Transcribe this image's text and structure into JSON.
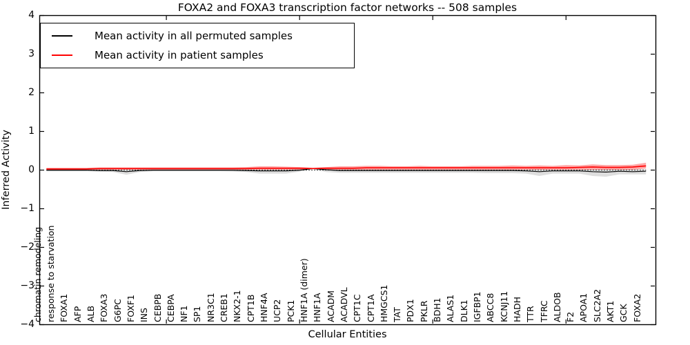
{
  "chart_data": {
    "type": "line",
    "title": "FOXA2 and FOXA3 transcription factor networks -- 508 samples",
    "xlabel": "Cellular Entities",
    "ylabel": "Inferred Activity",
    "ylim": [
      -4,
      4
    ],
    "yticks": [
      4,
      3,
      2,
      1,
      0,
      -1,
      -2,
      -3,
      -4
    ],
    "xticks_at": [
      10,
      20,
      30,
      40
    ],
    "grid": false,
    "legend_position": "upper left",
    "zero_line_style": "dotted",
    "categories": [
      "chromatin remodeling",
      "response to starvation",
      "FOXA1",
      "AFP",
      "ALB",
      "FOXA3",
      "G6PC",
      "FOXF1",
      "INS",
      "CEBPB",
      "CEBPA",
      "NF1",
      "SP1",
      "NR3C1",
      "CREB1",
      "NKX2-1",
      "CPT1B",
      "HNF4A",
      "UCP2",
      "PCK1",
      "HNF1A (dimer)",
      "HNF1A",
      "ACADM",
      "ACADVL",
      "CPT1C",
      "CPT1A",
      "HMGCS1",
      "TAT",
      "PDX1",
      "PKLR",
      "BDH1",
      "ALAS1",
      "DLK1",
      "IGFBP1",
      "ABCC8",
      "KCNJ11",
      "HADH",
      "TTR",
      "TFRC",
      "ALDOB",
      "F2",
      "APOA1",
      "SLC2A2",
      "AKT1",
      "GCK",
      "FOXA2"
    ],
    "series": [
      {
        "name": "Mean activity in all permuted samples",
        "color": "#000000",
        "band_color": "rgba(0,0,0,0.13)",
        "values": [
          -0.01,
          -0.01,
          -0.01,
          -0.01,
          -0.02,
          -0.02,
          -0.05,
          -0.02,
          -0.01,
          -0.01,
          -0.01,
          -0.01,
          -0.01,
          -0.01,
          -0.01,
          -0.02,
          -0.03,
          -0.03,
          -0.03,
          -0.01,
          0.03,
          0.0,
          -0.02,
          -0.02,
          -0.02,
          -0.02,
          -0.02,
          -0.02,
          -0.02,
          -0.02,
          -0.02,
          -0.02,
          -0.02,
          -0.02,
          -0.02,
          -0.02,
          -0.03,
          -0.05,
          -0.03,
          -0.03,
          -0.03,
          -0.05,
          -0.06,
          -0.04,
          -0.05,
          -0.04
        ],
        "band_upper": [
          0.01,
          0.01,
          0.01,
          0.01,
          0.01,
          0.01,
          0.01,
          0.01,
          0.01,
          0.01,
          0.01,
          0.01,
          0.01,
          0.01,
          0.01,
          0.01,
          0.01,
          0.01,
          0.01,
          0.01,
          0.04,
          0.01,
          0.01,
          0.01,
          0.01,
          0.01,
          0.01,
          0.01,
          0.01,
          0.01,
          0.01,
          0.01,
          0.01,
          0.01,
          0.01,
          0.01,
          0.01,
          0.01,
          0.01,
          0.01,
          0.01,
          0.01,
          0.01,
          0.01,
          0.01,
          0.01
        ],
        "band_lower": [
          -0.04,
          -0.04,
          -0.04,
          -0.04,
          -0.05,
          -0.06,
          -0.13,
          -0.06,
          -0.04,
          -0.04,
          -0.04,
          -0.04,
          -0.04,
          -0.04,
          -0.05,
          -0.06,
          -0.1,
          -0.1,
          -0.1,
          -0.05,
          0.01,
          -0.06,
          -0.08,
          -0.08,
          -0.08,
          -0.08,
          -0.08,
          -0.08,
          -0.08,
          -0.08,
          -0.08,
          -0.08,
          -0.08,
          -0.09,
          -0.09,
          -0.09,
          -0.1,
          -0.16,
          -0.1,
          -0.1,
          -0.1,
          -0.16,
          -0.18,
          -0.12,
          -0.12,
          -0.12
        ]
      },
      {
        "name": "Mean activity in patient samples",
        "color": "#ff0000",
        "band_color": "rgba(255,0,0,0.35)",
        "values": [
          0.02,
          0.02,
          0.02,
          0.02,
          0.03,
          0.03,
          0.03,
          0.03,
          0.03,
          0.03,
          0.03,
          0.03,
          0.03,
          0.03,
          0.03,
          0.03,
          0.04,
          0.04,
          0.04,
          0.04,
          0.03,
          0.04,
          0.04,
          0.04,
          0.05,
          0.05,
          0.05,
          0.05,
          0.05,
          0.05,
          0.05,
          0.05,
          0.05,
          0.05,
          0.05,
          0.05,
          0.05,
          0.05,
          0.05,
          0.05,
          0.06,
          0.07,
          0.06,
          0.06,
          0.07,
          0.1
        ],
        "band_upper": [
          0.05,
          0.05,
          0.05,
          0.05,
          0.06,
          0.06,
          0.06,
          0.06,
          0.06,
          0.06,
          0.06,
          0.06,
          0.06,
          0.06,
          0.06,
          0.07,
          0.09,
          0.09,
          0.08,
          0.07,
          0.05,
          0.07,
          0.09,
          0.09,
          0.1,
          0.1,
          0.09,
          0.09,
          0.1,
          0.09,
          0.09,
          0.09,
          0.1,
          0.1,
          0.1,
          0.11,
          0.1,
          0.11,
          0.1,
          0.12,
          0.11,
          0.14,
          0.12,
          0.12,
          0.13,
          0.18
        ],
        "band_lower": [
          0.0,
          0.0,
          0.0,
          0.0,
          0.0,
          0.0,
          0.0,
          0.0,
          0.0,
          0.0,
          0.0,
          0.0,
          0.0,
          0.0,
          0.0,
          0.0,
          0.0,
          0.0,
          0.0,
          0.0,
          0.02,
          0.0,
          0.0,
          0.0,
          0.0,
          0.0,
          0.0,
          0.0,
          0.0,
          0.0,
          0.0,
          0.0,
          0.0,
          0.0,
          0.0,
          0.0,
          0.0,
          0.0,
          0.0,
          0.0,
          0.0,
          0.0,
          0.0,
          0.0,
          0.0,
          0.03
        ]
      }
    ]
  }
}
